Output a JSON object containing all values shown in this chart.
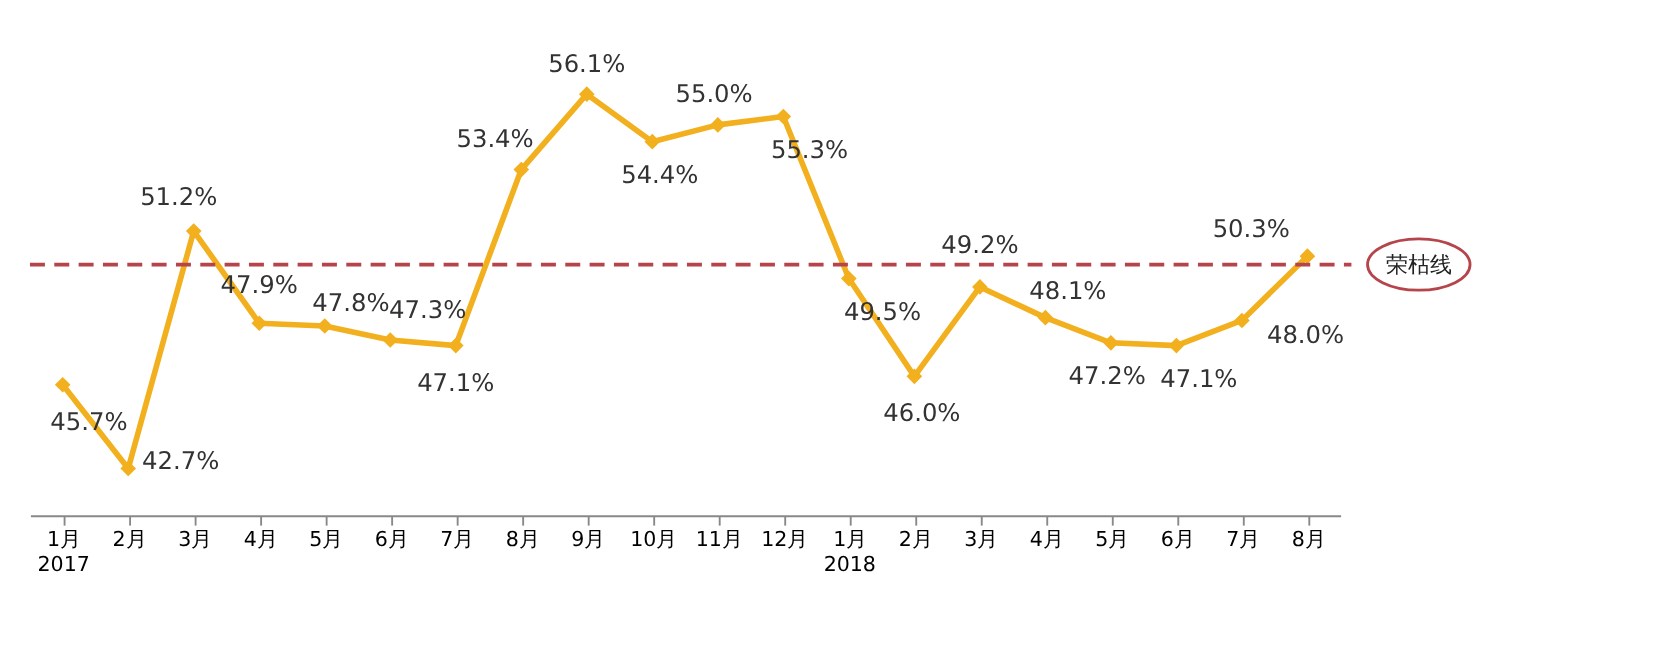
{
  "chart_data": {
    "type": "line",
    "categories": [
      "1月\n2017",
      "2月",
      "3月",
      "4月",
      "5月",
      "6月",
      "7月",
      "8月",
      "9月",
      "10月",
      "11月",
      "12月",
      "1月\n2018",
      "2月",
      "3月",
      "4月",
      "5月",
      "6月",
      "7月",
      "8月"
    ],
    "series": [
      {
        "color": "#f2b01e",
        "values": [
          45.7,
          42.7,
          51.2,
          47.9,
          47.8,
          47.3,
          47.1,
          53.4,
          56.1,
          54.4,
          55.0,
          55.3,
          49.5,
          46.0,
          49.2,
          48.1,
          47.2,
          47.1,
          48.0,
          50.3
        ],
        "value_labels": [
          "45.7%",
          "42.7%",
          "51.2%",
          "47.9%",
          "47.8%",
          "47.3%",
          "47.1%",
          "53.4%",
          "56.1%",
          "54.4%",
          "55.0%",
          "55.3%",
          "49.5%",
          "46.0%",
          "49.2%",
          "48.1%",
          "47.2%",
          "47.1%",
          "48.0%",
          "50.3%"
        ]
      }
    ],
    "ref_lines": [
      {
        "axis": "y",
        "value": 50,
        "label": "荣枯线",
        "color": "#b5454a",
        "line_style": "dashed"
      }
    ],
    "data_labels": true,
    "marker": "diamond",
    "line_style": "solid",
    "grid": false
  }
}
